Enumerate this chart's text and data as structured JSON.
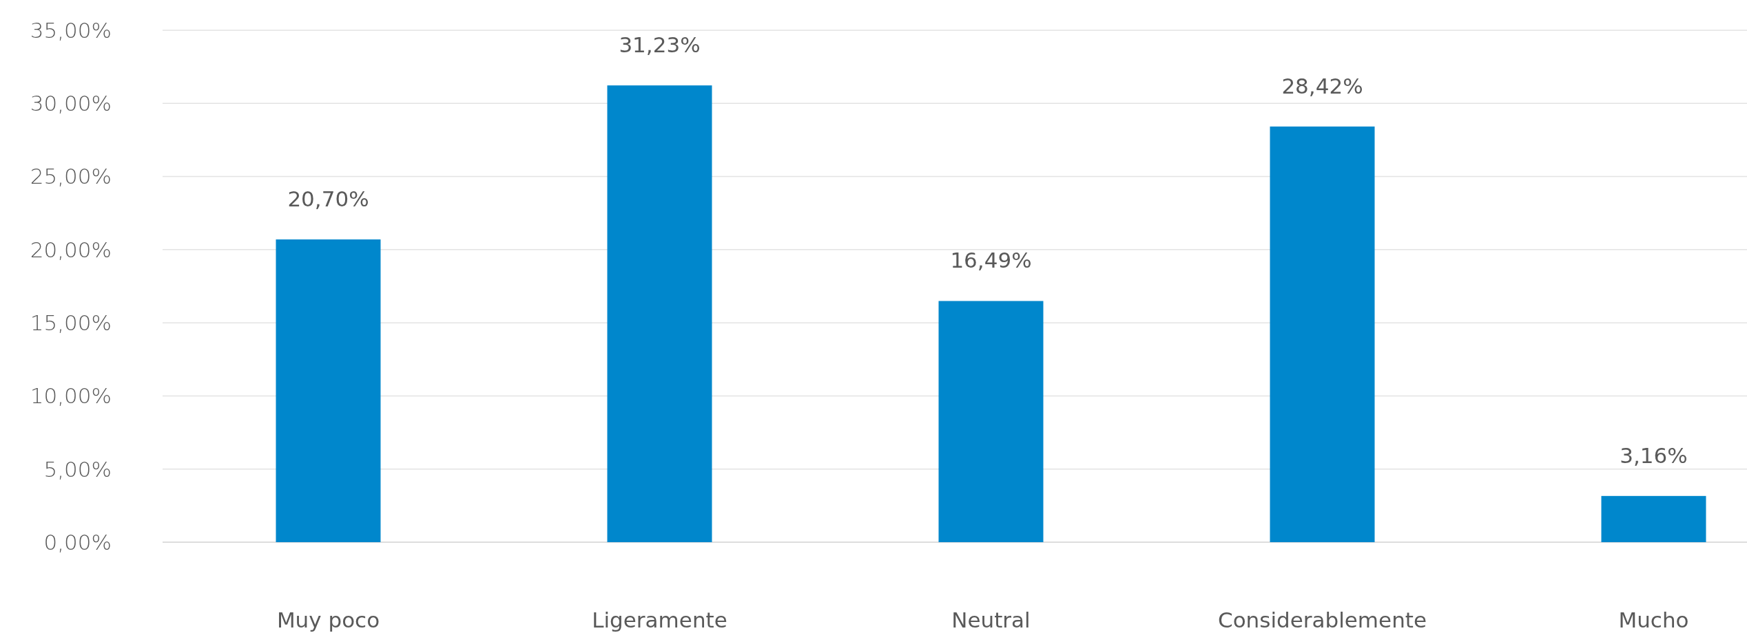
{
  "chart_data": {
    "type": "bar",
    "categories": [
      "Muy poco",
      "Ligeramente",
      "Neutral",
      "Considerablemente",
      "Mucho"
    ],
    "values": [
      20.7,
      31.23,
      16.49,
      28.42,
      3.16
    ],
    "value_labels": [
      "20,70%",
      "31,23%",
      "16,49%",
      "28,42%",
      "3,16%"
    ],
    "color": "#0087cc",
    "ylim": [
      0,
      35
    ],
    "yticks": [
      {
        "value": 0,
        "label": "0,00%"
      },
      {
        "value": 5,
        "label": "5,00%"
      },
      {
        "value": 10,
        "label": "10,00%"
      },
      {
        "value": 15,
        "label": "15,00%"
      },
      {
        "value": 20,
        "label": "20,00%"
      },
      {
        "value": 25,
        "label": "25,00%"
      },
      {
        "value": 30,
        "label": "30,00%"
      },
      {
        "value": 35,
        "label": "35,00%"
      }
    ],
    "grid": "y"
  }
}
